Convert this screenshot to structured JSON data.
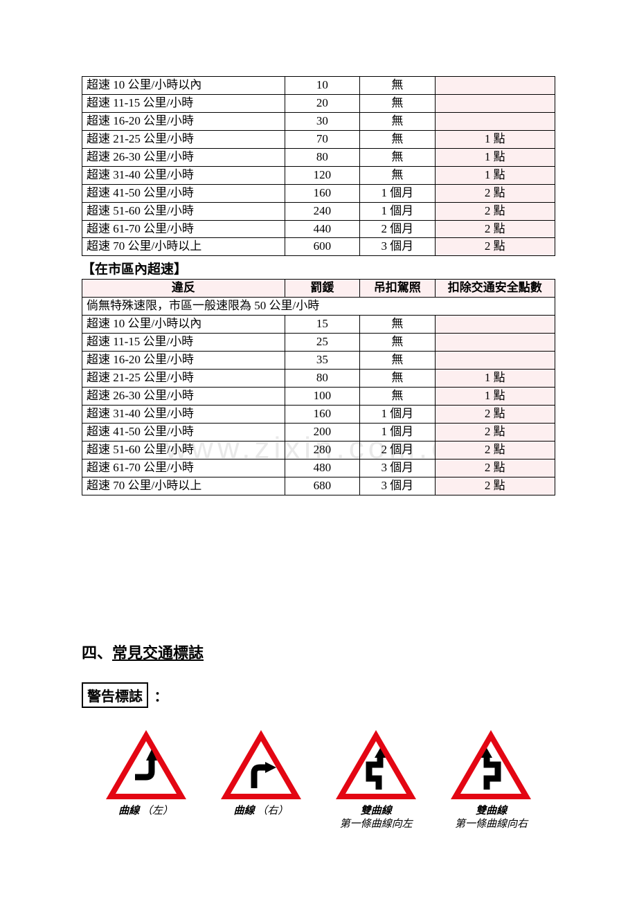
{
  "colors": {
    "page_bg": "#ffffff",
    "text": "#000000",
    "table_border": "#000000",
    "pink_bg": "#fdeff0",
    "watermark": "#e9e9e9",
    "sign_red": "#e30613",
    "sign_black": "#000000",
    "sign_white": "#ffffff"
  },
  "table1": {
    "rows": [
      {
        "v": "超速 10 公里/小時以內",
        "f": "10",
        "s": "無",
        "p": ""
      },
      {
        "v": "超速 11-15 公里/小時",
        "f": "20",
        "s": "無",
        "p": ""
      },
      {
        "v": "超速 16-20 公里/小時",
        "f": "30",
        "s": "無",
        "p": ""
      },
      {
        "v": "超速 21-25 公里/小時",
        "f": "70",
        "s": "無",
        "p": "1 點"
      },
      {
        "v": "超速 26-30 公里/小時",
        "f": "80",
        "s": "無",
        "p": "1 點"
      },
      {
        "v": "超速 31-40 公里/小時",
        "f": "120",
        "s": "無",
        "p": "1 點"
      },
      {
        "v": "超速 41-50 公里/小時",
        "f": "160",
        "s": "1 個月",
        "p": "2 點"
      },
      {
        "v": "超速 51-60 公里/小時",
        "f": "240",
        "s": "1 個月",
        "p": "2 點"
      },
      {
        "v": "超速 61-70 公里/小時",
        "f": "440",
        "s": "2 個月",
        "p": "2 點"
      },
      {
        "v": "超速 70 公里/小時以上",
        "f": "600",
        "s": "3 個月",
        "p": "2 點"
      }
    ]
  },
  "section2_title": "【在市區內超速】",
  "table2": {
    "headers": {
      "v": "違反",
      "f": "罰鍰",
      "s": "吊扣駕照",
      "p": "扣除交通安全點數"
    },
    "note": "倘無特殊速限，市區一般速限為 50 公里/小時",
    "rows": [
      {
        "v": "超速 10 公里/小時以內",
        "f": "15",
        "s": "無",
        "p": ""
      },
      {
        "v": "超速 11-15 公里/小時",
        "f": "25",
        "s": "無",
        "p": ""
      },
      {
        "v": "超速 16-20 公里/小時",
        "f": "35",
        "s": "無",
        "p": ""
      },
      {
        "v": "超速 21-25 公里/小時",
        "f": "80",
        "s": "無",
        "p": "1 點"
      },
      {
        "v": "超速 26-30 公里/小時",
        "f": "100",
        "s": "無",
        "p": "1 點"
      },
      {
        "v": "超速 31-40 公里/小時",
        "f": "160",
        "s": "1 個月",
        "p": "2 點"
      },
      {
        "v": "超速 41-50 公里/小時",
        "f": "200",
        "s": "1 個月",
        "p": "2 點"
      },
      {
        "v": "超速 51-60 公里/小時",
        "f": "280",
        "s": "2 個月",
        "p": "2 點"
      },
      {
        "v": "超速 61-70 公里/小時",
        "f": "480",
        "s": "3 個月",
        "p": "2 點"
      },
      {
        "v": "超速 70 公里/小時以上",
        "f": "680",
        "s": "3 個月",
        "p": "2 點"
      }
    ]
  },
  "heading4_prefix": "四、",
  "heading4_text": "常見交通標誌",
  "warning_label": "警告標誌",
  "warning_colon": "：",
  "watermark_text": "www.zixin.com.cn",
  "signs": [
    {
      "main": "曲線",
      "paren": "（左）",
      "sub": ""
    },
    {
      "main": "曲線",
      "paren": "（右）",
      "sub": ""
    },
    {
      "main": "雙曲線",
      "paren": "",
      "sub": "第一條曲線向左"
    },
    {
      "main": "雙曲線",
      "paren": "",
      "sub": "第一條曲線向右"
    }
  ]
}
